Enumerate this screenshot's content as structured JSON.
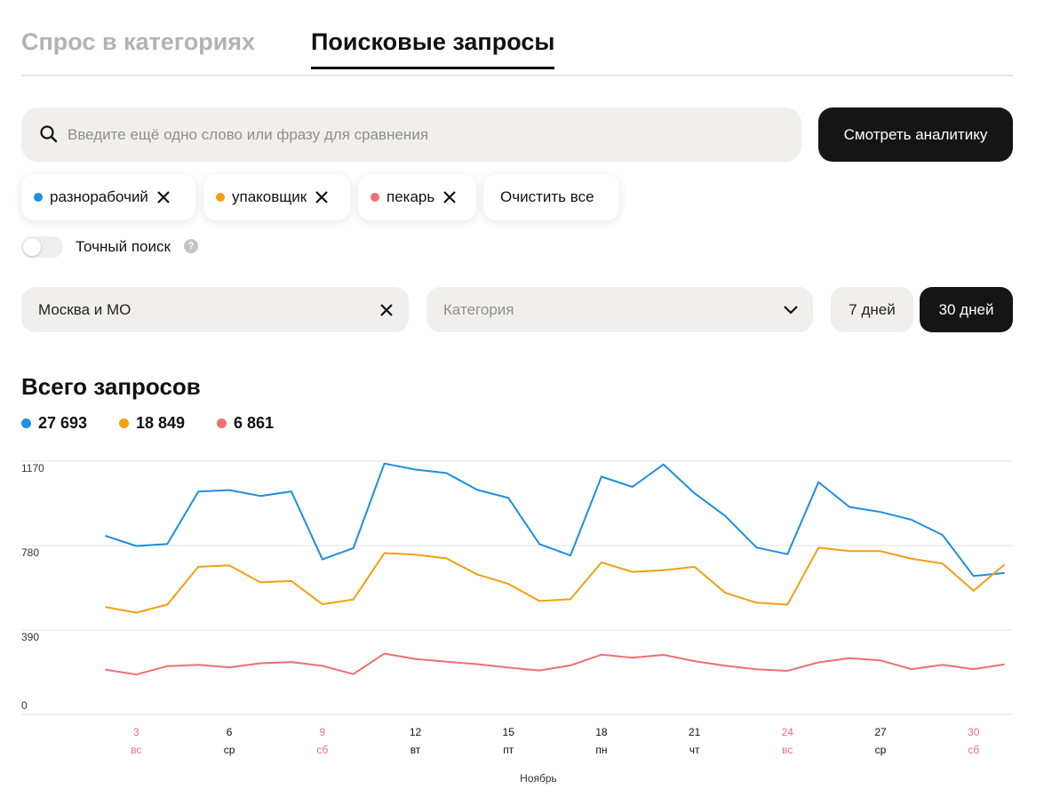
{
  "tabs": {
    "inactive": "Спрос в категориях",
    "active": "Поисковые запросы"
  },
  "search": {
    "placeholder": "Введите ещё одно слово или фразу для сравнения",
    "button": "Смотреть аналитику"
  },
  "chips": [
    {
      "label": "разнорабочий",
      "color": "#1c8fe3"
    },
    {
      "label": "упаковщик",
      "color": "#f29f12"
    },
    {
      "label": "пекарь",
      "color": "#ef6f72"
    }
  ],
  "clear_all": "Очистить все",
  "exact_search": "Точный поиск",
  "help_icon": "?",
  "region": "Москва и МО",
  "category_placeholder": "Категория",
  "periods": {
    "short": "7 дней",
    "long": "30 дней"
  },
  "totals_title": "Всего запросов",
  "totals": [
    {
      "value": "27 693",
      "color": "#1c8fe3"
    },
    {
      "value": "18 849",
      "color": "#f29f12"
    },
    {
      "value": "6 861",
      "color": "#ef6f72"
    }
  ],
  "chart_data": {
    "type": "line",
    "ylim": [
      0,
      1170
    ],
    "yticks": [
      "1170",
      "780",
      "390",
      "0"
    ],
    "x_days": [
      2,
      3,
      4,
      5,
      6,
      7,
      8,
      9,
      10,
      11,
      12,
      13,
      14,
      15,
      16,
      17,
      18,
      19,
      20,
      21,
      22,
      23,
      24,
      25,
      26,
      27,
      28,
      29,
      30,
      31
    ],
    "x_ticks": [
      {
        "day": "3",
        "weekday": "вс",
        "weekend": true
      },
      {
        "day": "6",
        "weekday": "ср",
        "weekend": false
      },
      {
        "day": "9",
        "weekday": "сб",
        "weekend": true
      },
      {
        "day": "12",
        "weekday": "вт",
        "weekend": false
      },
      {
        "day": "15",
        "weekday": "пт",
        "weekend": false
      },
      {
        "day": "18",
        "weekday": "пн",
        "weekend": false
      },
      {
        "day": "21",
        "weekday": "чт",
        "weekend": false
      },
      {
        "day": "24",
        "weekday": "вс",
        "weekend": true
      },
      {
        "day": "27",
        "weekday": "ср",
        "weekend": false
      },
      {
        "day": "30",
        "weekday": "сб",
        "weekend": true
      }
    ],
    "xlabel": "Ноябрь",
    "series": [
      {
        "color": "#1c8fe3",
        "values": [
          825,
          778,
          787,
          1029,
          1036,
          1009,
          1030,
          716,
          768,
          1159,
          1131,
          1115,
          1037,
          1000,
          787,
          734,
          1098,
          1051,
          1155,
          1022,
          916,
          771,
          740,
          1073,
          958,
          935,
          899,
          829,
          639,
          653
        ]
      },
      {
        "color": "#f29f12",
        "values": [
          496,
          470,
          507,
          682,
          688,
          610,
          616,
          509,
          531,
          745,
          738,
          721,
          646,
          603,
          524,
          532,
          702,
          658,
          666,
          682,
          561,
          516,
          507,
          770,
          754,
          754,
          719,
          697,
          571,
          692
        ]
      },
      {
        "color": "#ef6f72",
        "values": [
          207,
          184,
          223,
          229,
          217,
          236,
          242,
          224,
          186,
          281,
          256,
          243,
          232,
          216,
          203,
          226,
          276,
          262,
          275,
          246,
          225,
          208,
          201,
          240,
          260,
          249,
          209,
          229,
          209,
          231
        ]
      }
    ]
  }
}
